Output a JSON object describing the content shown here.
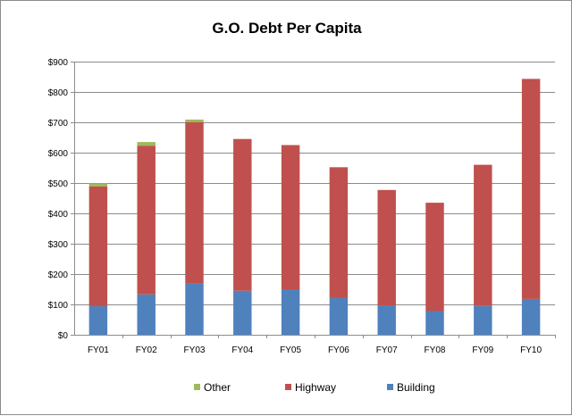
{
  "chart_data": {
    "type": "bar",
    "stacked": true,
    "title": "G.O. Debt Per Capita",
    "xlabel": "",
    "ylabel": "",
    "categories": [
      "FY01",
      "FY02",
      "FY03",
      "FY04",
      "FY05",
      "FY06",
      "FY07",
      "FY08",
      "FY09",
      "FY10"
    ],
    "series": [
      {
        "name": "Building",
        "color": "#4F81BD",
        "values": [
          94,
          133,
          168,
          145,
          150,
          122,
          97,
          78,
          95,
          118
        ]
      },
      {
        "name": "Highway",
        "color": "#C0504D",
        "values": [
          395,
          490,
          533,
          500,
          475,
          430,
          380,
          357,
          465,
          725
        ]
      },
      {
        "name": "Other",
        "color": "#9BBB59",
        "values": [
          10,
          12,
          8,
          0,
          0,
          0,
          0,
          0,
          0,
          0
        ]
      }
    ],
    "legend_order": [
      "Other",
      "Highway",
      "Building"
    ],
    "legend_position": "bottom",
    "ylim": [
      0,
      900
    ],
    "yticks": [
      0,
      100,
      200,
      300,
      400,
      500,
      600,
      700,
      800,
      900
    ],
    "ytick_labels": [
      "$0",
      "$100",
      "$200",
      "$300",
      "$400",
      "$500",
      "$600",
      "$700",
      "$800",
      "$900"
    ],
    "grid": true
  }
}
